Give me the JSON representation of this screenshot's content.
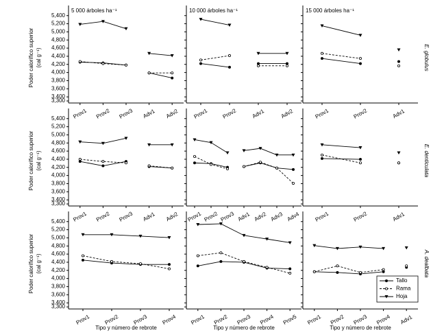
{
  "chart_data": {
    "type": "line",
    "ylabel": [
      "Poder calorífico superior",
      "(cal g⁻¹)"
    ],
    "xlabel": "Tipo y número de rebrote",
    "ylim": [
      3250,
      5480
    ],
    "yticks": [
      {
        "value": 3300,
        "label": "3,300"
      },
      {
        "value": 3400,
        "label": "3,400"
      },
      {
        "value": 3600,
        "label": "3,600"
      },
      {
        "value": 3800,
        "label": "3,800"
      },
      {
        "value": 4000,
        "label": "4,000"
      },
      {
        "value": 4200,
        "label": "4,200"
      },
      {
        "value": 4400,
        "label": "4,400"
      },
      {
        "value": 4600,
        "label": "4,600"
      },
      {
        "value": 4800,
        "label": "4,800"
      },
      {
        "value": 5000,
        "label": "5,000"
      },
      {
        "value": 5200,
        "label": "5,200"
      },
      {
        "value": 5400,
        "label": "5,400"
      }
    ],
    "series": [
      {
        "name": "Tallo",
        "color": "#000000",
        "line": "solid",
        "marker": "circle"
      },
      {
        "name": "Rama",
        "color": "#000000",
        "line": "dashed",
        "marker": "open-circle"
      },
      {
        "name": "Hoja",
        "color": "#000000",
        "line": "solid",
        "marker": "triangle-down"
      }
    ],
    "legend": "lower right",
    "column_titles": [
      "5 000 árboles ha⁻¹",
      "10 000 árboles ha⁻¹",
      "15 000 árboles ha⁻¹"
    ],
    "row_labels": [
      "E. globulus",
      "E. denticulata",
      "A. dealbata"
    ],
    "panels": [
      {
        "categories": [
          "Prov1",
          "Prov2",
          "Prov3",
          "Adv1",
          "Adv2"
        ],
        "values": [
          [
            4255,
            4237,
            4183,
            3990,
            3865
          ],
          [
            4270,
            4220,
            4183,
            3990,
            3990
          ],
          [
            5185,
            5257,
            5078,
            4470,
            4415
          ]
        ]
      },
      {
        "categories": [
          "Prov1",
          "Prov2",
          "Adv1",
          "Adv2"
        ],
        "values": [
          [
            4220,
            4130,
            4220,
            4220
          ],
          [
            4308,
            4415,
            4165,
            4165
          ],
          [
            5310,
            5167,
            4470,
            4470
          ]
        ]
      },
      {
        "categories": [
          "Prov1",
          "Prov2",
          "Adv1"
        ],
        "values": [
          [
            4345,
            4220,
            4270
          ],
          [
            4470,
            4345,
            4165
          ],
          [
            5150,
            4917,
            4560
          ]
        ]
      },
      {
        "categories": [
          "Prov1",
          "Prov2",
          "Prov3",
          "Adv1",
          "Adv2"
        ],
        "values": [
          [
            4345,
            4238,
            4345,
            4220,
            4184
          ],
          [
            4398,
            4345,
            4310,
            4238,
            4184
          ],
          [
            4827,
            4792,
            4917,
            4756,
            4756
          ]
        ]
      },
      {
        "categories": [
          "Prov1",
          "Prov2",
          "Prov3",
          "Adv1",
          "Adv2",
          "Adv3",
          "Adv4"
        ],
        "values": [
          [
            4310,
            4292,
            4202,
            4220,
            4310,
            4184,
            4148
          ],
          [
            4469,
            4272,
            4165,
            4220,
            4327,
            4184,
            3808
          ],
          [
            4881,
            4810,
            4559,
            4613,
            4667,
            4505,
            4505
          ]
        ]
      },
      {
        "categories": [
          "Prov1",
          "Prov2",
          "Adv1"
        ],
        "values": [
          [
            4417,
            4398,
            4310
          ],
          [
            4505,
            4310,
            4310
          ],
          [
            4756,
            4685,
            4559
          ]
        ]
      },
      {
        "categories": [
          "Prov1",
          "Prov2",
          "Prov3",
          "Prov4"
        ],
        "values": [
          [
            4452,
            4380,
            4345,
            4345
          ],
          [
            4560,
            4417,
            4363,
            4238
          ],
          [
            5078,
            5078,
            5042,
            5006
          ]
        ]
      },
      {
        "categories": [
          "Prov1",
          "Prov2",
          "Prov3",
          "Prov4",
          "Prov5"
        ],
        "values": [
          [
            4310,
            4417,
            4399,
            4256,
            4238
          ],
          [
            4560,
            4631,
            4417,
            4274,
            4130
          ],
          [
            5328,
            5346,
            5060,
            4971,
            4881
          ]
        ]
      },
      {
        "categories": [
          "Prov1",
          "Prov2",
          "Prov3",
          "Prov4",
          "Adv1"
        ],
        "values": [
          [
            4166,
            4148,
            4112,
            4166,
            4274
          ],
          [
            4166,
            4310,
            4148,
            4220,
            4310
          ],
          [
            4810,
            4738,
            4774,
            4738,
            4756
          ]
        ]
      }
    ]
  }
}
